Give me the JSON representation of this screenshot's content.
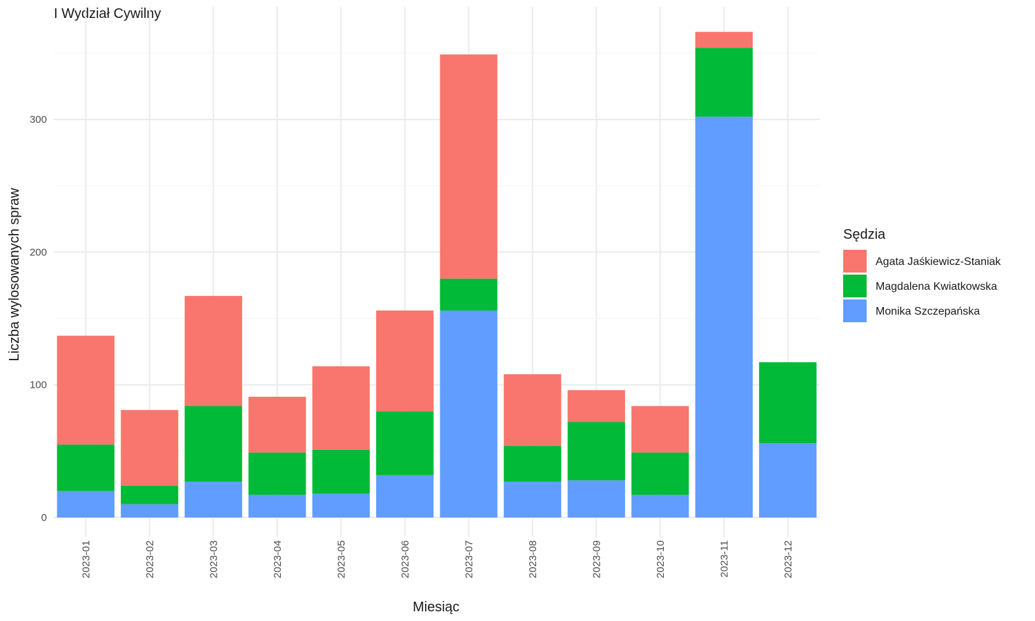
{
  "chart_data": {
    "type": "bar",
    "stacked": true,
    "title": "I Wydział Cywilny",
    "xlabel": "Miesiąc",
    "ylabel": "Liczba wylosowanych spraw",
    "ylim": [
      0,
      370
    ],
    "yticks": [
      0,
      100,
      200,
      300
    ],
    "grid": true,
    "legend_title": "Sędzia",
    "legend_position": "right",
    "categories": [
      "2023-01",
      "2023-02",
      "2023-03",
      "2023-04",
      "2023-05",
      "2023-06",
      "2023-07",
      "2023-08",
      "2023-09",
      "2023-10",
      "2023-11",
      "2023-12"
    ],
    "series": [
      {
        "name": "Monika Szczepańska",
        "color": "#619CFF",
        "values": [
          20,
          10,
          27,
          17,
          18,
          32,
          156,
          27,
          28,
          17,
          302,
          56
        ]
      },
      {
        "name": "Magdalena Kwiatkowska",
        "color": "#00BA38",
        "values": [
          35,
          14,
          57,
          32,
          33,
          48,
          24,
          27,
          44,
          32,
          52,
          61
        ]
      },
      {
        "name": "Agata Jaśkiewicz-Staniak",
        "color": "#F8766D",
        "values": [
          82,
          57,
          83,
          42,
          63,
          76,
          169,
          54,
          24,
          35,
          12,
          0
        ]
      }
    ],
    "legend_order": [
      "Agata Jaśkiewicz-Staniak",
      "Magdalena Kwiatkowska",
      "Monika Szczepańska"
    ]
  }
}
